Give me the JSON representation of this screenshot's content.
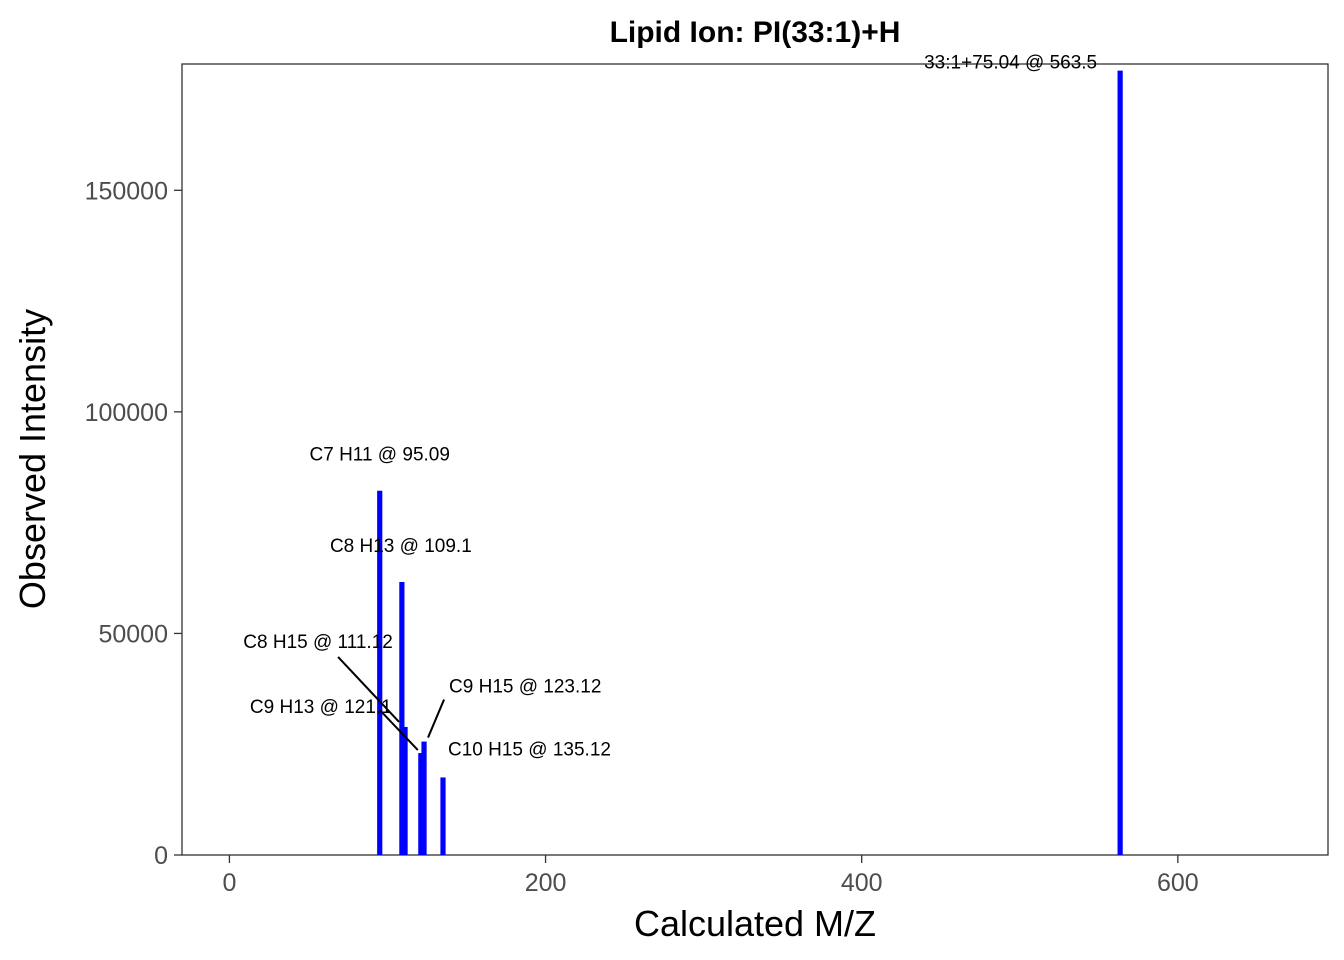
{
  "chart_data": {
    "type": "bar",
    "title": "Lipid Ion: PI(33:1)+H",
    "xlabel": "Calculated M/Z",
    "ylabel": "Observed Intensity",
    "xlim": [
      -30,
      695
    ],
    "ylim": [
      0,
      178500
    ],
    "x_ticks": [
      0,
      200,
      400,
      600
    ],
    "y_ticks": [
      0,
      50000,
      100000,
      150000
    ],
    "x_tick_labels": [
      "0",
      "200",
      "400",
      "600"
    ],
    "y_tick_labels": [
      "0",
      "50000",
      "100000",
      "150000"
    ],
    "grid": false,
    "bar_color": "#0000ff",
    "peaks": [
      {
        "mz": 95.09,
        "intensity": 82200,
        "label": "C7 H11 @ 95.09"
      },
      {
        "mz": 109.1,
        "intensity": 61600,
        "label": "C8 H13 @ 109.1"
      },
      {
        "mz": 111.12,
        "intensity": 28900,
        "label": "C8 H15 @ 111.12"
      },
      {
        "mz": 121.1,
        "intensity": 23000,
        "label": "C9 H13 @ 121.1"
      },
      {
        "mz": 123.12,
        "intensity": 25600,
        "label": "C9 H15 @ 123.12"
      },
      {
        "mz": 135.12,
        "intensity": 17500,
        "label": "C10 H15 @ 135.12"
      },
      {
        "mz": 563.5,
        "intensity": 177000,
        "label": "33:1+75.04 @ 563.5"
      }
    ]
  }
}
